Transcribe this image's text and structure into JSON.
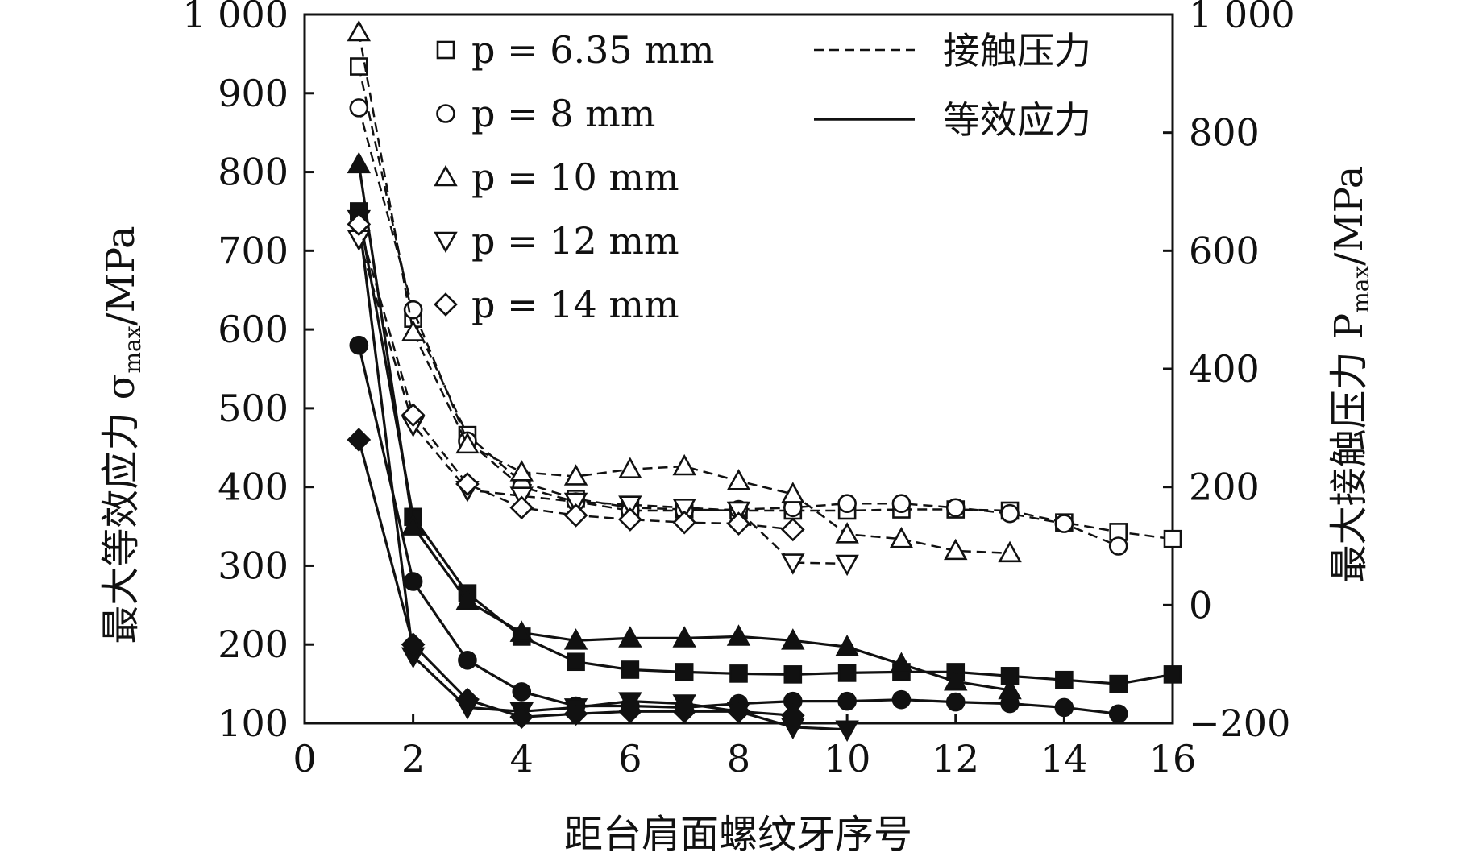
{
  "chart_data": {
    "type": "line",
    "xlabel": "距台肩面螺纹牙序号",
    "ylabel_left": "最大等效应力 σ",
    "ylabel_left_sub": "max",
    "ylabel_left_unit": "/MPa",
    "ylabel_right": "最大接触压力 P",
    "ylabel_right_sub": "max",
    "ylabel_right_unit": "/MPa",
    "xlim": [
      0,
      16
    ],
    "ylim_left": [
      100,
      1000
    ],
    "ylim_right": [
      -200,
      1000
    ],
    "x_ticks": [
      "0",
      "2",
      "4",
      "6",
      "8",
      "10",
      "12",
      "14",
      "16"
    ],
    "y_left_ticks": [
      "100",
      "200",
      "300",
      "400",
      "500",
      "600",
      "700",
      "800",
      "900",
      "1 000"
    ],
    "y_right_ticks": [
      "−200",
      "0",
      "200",
      "400",
      "600",
      "800",
      "1 000"
    ],
    "legend_style": [
      {
        "label": "接触压力",
        "line": "dashed"
      },
      {
        "label": "等效应力",
        "line": "solid"
      }
    ],
    "series": [
      {
        "name": "p = 6.35 mm",
        "marker": "square",
        "stress_x": [
          1,
          2,
          3,
          4,
          5,
          6,
          7,
          8,
          9,
          10,
          11,
          12,
          13,
          14,
          15,
          16
        ],
        "stress_y": [
          750,
          362,
          265,
          210,
          178,
          168,
          165,
          163,
          162,
          164,
          165,
          165,
          160,
          155,
          150,
          162
        ],
        "pressure_x": [
          1,
          2,
          3,
          4,
          5,
          6,
          7,
          8,
          9,
          10,
          11,
          12,
          13,
          14,
          15,
          16
        ],
        "pressure_y": [
          912,
          485,
          288,
          208,
          180,
          165,
          162,
          160,
          160,
          160,
          162,
          162,
          160,
          140,
          124,
          112
        ]
      },
      {
        "name": "p = 8 mm",
        "marker": "circle",
        "stress_x": [
          1,
          2,
          3,
          4,
          5,
          6,
          7,
          8,
          9,
          10,
          11,
          12,
          13,
          14,
          15
        ],
        "stress_y": [
          580,
          280,
          180,
          140,
          122,
          122,
          120,
          125,
          128,
          128,
          130,
          127,
          125,
          120,
          112
        ],
        "pressure_x": [
          1,
          2,
          3,
          4,
          5,
          6,
          7,
          8,
          9,
          10,
          11,
          12,
          13,
          14,
          15
        ],
        "pressure_y": [
          842,
          500,
          278,
          200,
          175,
          160,
          160,
          162,
          165,
          172,
          172,
          165,
          155,
          138,
          100
        ]
      },
      {
        "name": "p = 10 mm",
        "marker": "triangle-up",
        "stress_x": [
          1,
          2,
          3,
          4,
          5,
          6,
          7,
          8,
          9,
          10,
          11,
          12,
          13
        ],
        "stress_y": [
          810,
          350,
          255,
          215,
          205,
          208,
          208,
          210,
          205,
          197,
          175,
          153,
          142
        ],
        "pressure_x": [
          1,
          2,
          3,
          4,
          5,
          6,
          7,
          8,
          9,
          10,
          11,
          12,
          13
        ],
        "pressure_y": [
          970,
          462,
          272,
          225,
          218,
          230,
          235,
          210,
          188,
          120,
          112,
          92,
          88
        ]
      },
      {
        "name": "p = 12 mm",
        "marker": "triangle-down",
        "stress_x": [
          1,
          2,
          3,
          4,
          5,
          6,
          7,
          8,
          9,
          10
        ],
        "stress_y": [
          740,
          185,
          120,
          115,
          120,
          128,
          125,
          115,
          95,
          92
        ],
        "pressure_x": [
          1,
          2,
          3,
          4,
          5,
          6,
          7,
          8,
          9,
          10
        ],
        "pressure_y": [
          620,
          305,
          195,
          185,
          175,
          170,
          165,
          160,
          72,
          70
        ]
      },
      {
        "name": "p = 14 mm",
        "marker": "diamond",
        "stress_x": [
          1,
          2,
          3,
          4,
          5,
          6,
          7,
          8,
          9
        ],
        "stress_y": [
          460,
          200,
          130,
          108,
          112,
          115,
          115,
          115,
          110
        ],
        "pressure_x": [
          1,
          2,
          3,
          4,
          5,
          6,
          7,
          8,
          9
        ],
        "pressure_y": [
          645,
          322,
          205,
          165,
          152,
          145,
          140,
          138,
          128
        ]
      }
    ]
  }
}
